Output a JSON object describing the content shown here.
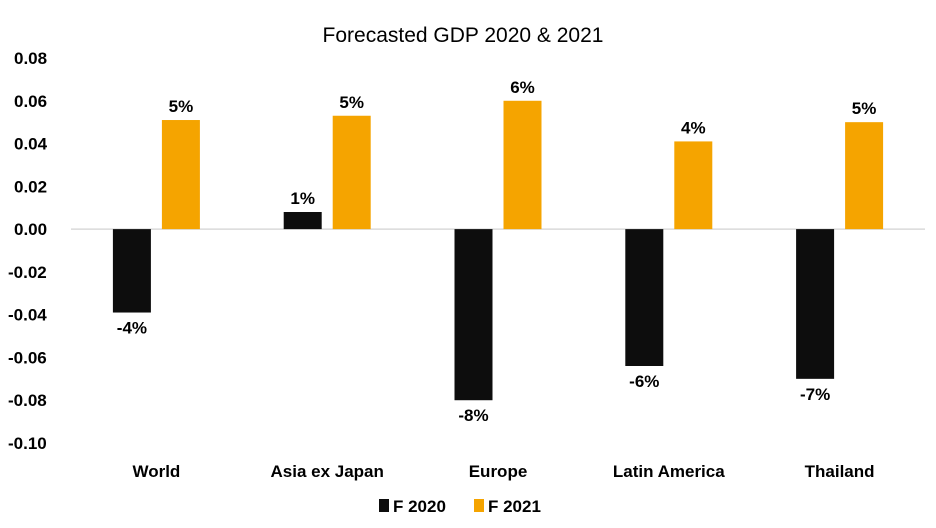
{
  "chart_data": {
    "type": "bar",
    "title": "Forecasted GDP 2020 & 2021",
    "xlabel": "",
    "ylabel": "",
    "categories": [
      "World",
      "Asia ex Japan",
      "Europe",
      "Latin America",
      "Thailand"
    ],
    "series": [
      {
        "name": "F 2020",
        "color": "#0d0d0d",
        "values": [
          -0.039,
          0.008,
          -0.08,
          -0.064,
          -0.07
        ],
        "labels": [
          "-4%",
          "1%",
          "-8%",
          "-6%",
          "-7%"
        ]
      },
      {
        "name": "F 2021",
        "color": "#f5a400",
        "values": [
          0.051,
          0.053,
          0.06,
          0.041,
          0.05
        ],
        "labels": [
          "5%",
          "5%",
          "6%",
          "4%",
          "5%"
        ]
      }
    ],
    "ylim": [
      -0.1,
      0.08
    ],
    "yticks": [
      0.08,
      0.06,
      0.04,
      0.02,
      0.0,
      -0.02,
      -0.04,
      -0.06,
      -0.08,
      -0.1
    ],
    "ytick_labels": [
      "0.08",
      "0.06",
      "0.04",
      "0.02",
      "0.00",
      "-0.02",
      "-0.04",
      "-0.06",
      "-0.08",
      "-0.10"
    ],
    "grid": false,
    "legend": {
      "position": "bottom",
      "entries": [
        "F 2020",
        "F 2021"
      ]
    }
  }
}
